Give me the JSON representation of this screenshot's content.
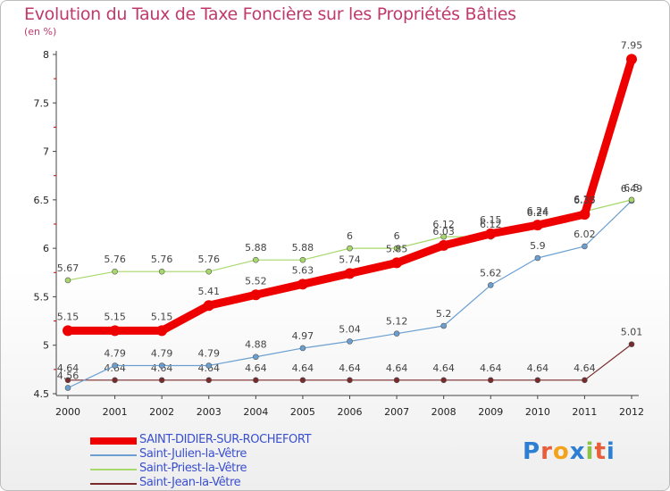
{
  "header": {
    "title": "Evolution du Taux de Taxe Foncière sur les Propriétés Bâties",
    "unit": "(en %)"
  },
  "logo": {
    "text": "Proxiti",
    "colors": [
      "#2d7fd3",
      "#e85d3a",
      "#f2a31b",
      "#2d7fd3",
      "#8bc34a",
      "#e85d3a",
      "#2d7fd3"
    ]
  },
  "chart_data": {
    "type": "line",
    "title": "Evolution du Taux de Taxe Foncière sur les Propriétés Bâties",
    "ylabel": "(en %)",
    "xlabel": "",
    "ylim": [
      4.5,
      8
    ],
    "yticks": [
      "4.5",
      "5",
      "5.5",
      "6",
      "6.5",
      "7",
      "7.5",
      "8"
    ],
    "categories": [
      "2000",
      "2001",
      "2002",
      "2003",
      "2004",
      "2005",
      "2006",
      "2007",
      "2008",
      "2009",
      "2010",
      "2011",
      "2012"
    ],
    "series": [
      {
        "name": "Saint-Jean-la-Vêtre",
        "color": "#7a2a2a",
        "width": 1.2,
        "marker": 3,
        "values": [
          4.64,
          4.64,
          4.64,
          4.64,
          4.64,
          4.64,
          4.64,
          4.64,
          4.64,
          4.64,
          4.64,
          4.64,
          5.01
        ],
        "labels": [
          "4.64",
          "4.64",
          "4.64",
          "4.64",
          "4.64",
          "4.64",
          "4.64",
          "4.64",
          "4.64",
          "4.64",
          "4.64",
          "4.64",
          "5.01"
        ]
      },
      {
        "name": "Saint-Julien-la-Vêtre",
        "color": "#6a9fd0",
        "width": 1.2,
        "marker": 3,
        "values": [
          4.56,
          4.79,
          4.79,
          4.79,
          4.88,
          4.97,
          5.04,
          5.12,
          5.2,
          5.62,
          5.9,
          6.02,
          6.49
        ],
        "labels": [
          "4.56",
          "4.79",
          "4.79",
          "4.79",
          "4.88",
          "4.97",
          "5.04",
          "5.12",
          "5.2",
          "5.62",
          "5.9",
          "6.02",
          "6.49"
        ]
      },
      {
        "name": "Saint-Priest-la-Vêtre",
        "color": "#a6d86a",
        "width": 1.2,
        "marker": 3,
        "values": [
          5.67,
          5.76,
          5.76,
          5.76,
          5.88,
          5.88,
          6,
          6,
          6.12,
          6.12,
          6.24,
          6.38,
          6.5
        ],
        "labels": [
          "5.67",
          "5.76",
          "5.76",
          "5.76",
          "5.88",
          "5.88",
          "6",
          "6",
          "6.12",
          "6.12",
          "6.24",
          "6.38",
          "6.5"
        ]
      },
      {
        "name": "SAINT-DIDIER-SUR-ROCHEFORT",
        "color": "#ee0000",
        "width": 9,
        "marker": 6,
        "values": [
          5.15,
          5.15,
          5.15,
          5.41,
          5.52,
          5.63,
          5.74,
          5.85,
          6.03,
          6.15,
          6.24,
          6.35,
          7.95
        ],
        "labels": [
          "5.15",
          "5.15",
          "5.15",
          "5.41",
          "5.52",
          "5.63",
          "5.74",
          "5.85",
          "6.03",
          "6.15",
          "6.24",
          "6.35",
          "7.95"
        ]
      }
    ],
    "legend": [
      "SAINT-DIDIER-SUR-ROCHEFORT",
      "Saint-Julien-la-Vêtre",
      "Saint-Priest-la-Vêtre",
      "Saint-Jean-la-Vêtre"
    ],
    "grid": false
  }
}
